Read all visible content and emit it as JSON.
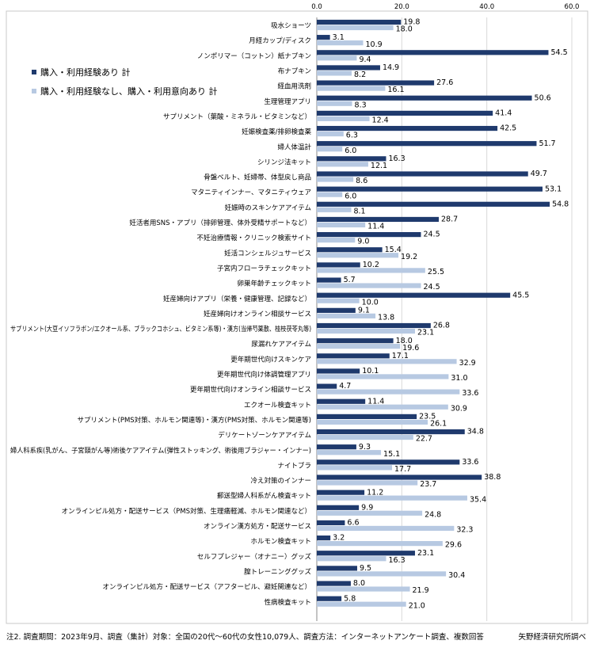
{
  "chart_data": {
    "type": "bar",
    "orientation": "horizontal",
    "xlim": [
      0,
      60
    ],
    "xticks": [
      "0.0",
      "20.0",
      "40.0",
      "60.0"
    ],
    "grid": true,
    "legend_position": "left",
    "colors": {
      "series1": "#1f3a6d",
      "series2": "#b7c9e2"
    },
    "series": [
      {
        "name": "購入・利用経験あり 計"
      },
      {
        "name": "購入・利用経験なし、購入・利用意向あり 計"
      }
    ],
    "categories": [
      {
        "label": "吸水ショーツ",
        "v1": "19.8",
        "v2": "18.0"
      },
      {
        "label": "月経カップ/ディスク",
        "v1": "3.1",
        "v2": "10.9"
      },
      {
        "label": "ノンポリマー（コットン）紙ナプキン",
        "v1": "54.5",
        "v2": "9.4"
      },
      {
        "label": "布ナプキン",
        "v1": "14.9",
        "v2": "8.2"
      },
      {
        "label": "経血用洗剤",
        "v1": "27.6",
        "v2": "16.1"
      },
      {
        "label": "生理管理アプリ",
        "v1": "50.6",
        "v2": "8.3"
      },
      {
        "label": "サプリメント（葉酸・ミネラル・ビタミンなど）",
        "v1": "41.4",
        "v2": "12.4"
      },
      {
        "label": "妊娠検査薬/排卵検査薬",
        "v1": "42.5",
        "v2": "6.3"
      },
      {
        "label": "婦人体温計",
        "v1": "51.7",
        "v2": "6.0"
      },
      {
        "label": "シリンジ法キット",
        "v1": "16.3",
        "v2": "12.1"
      },
      {
        "label": "骨盤ベルト、妊婦帯、体型戻し商品",
        "v1": "49.7",
        "v2": "8.6"
      },
      {
        "label": "マタニティインナー、マタニティウェア",
        "v1": "53.1",
        "v2": "6.0"
      },
      {
        "label": "妊娠時のスキンケアアイテム",
        "v1": "54.8",
        "v2": "8.1"
      },
      {
        "label": "妊活者用SNS・アプリ（排卵管理、体外受精サポートなど）",
        "v1": "28.7",
        "v2": "11.4"
      },
      {
        "label": "不妊治療情報・クリニック検索サイト",
        "v1": "24.5",
        "v2": "9.0"
      },
      {
        "label": "妊活コンシェルジュサービス",
        "v1": "15.4",
        "v2": "19.2"
      },
      {
        "label": "子宮内フローラチェックキット",
        "v1": "10.2",
        "v2": "25.5"
      },
      {
        "label": "卵巣年齢チェックキット",
        "v1": "5.7",
        "v2": "24.5"
      },
      {
        "label": "妊産婦向けアプリ（栄養・健康管理、記録など）",
        "v1": "45.5",
        "v2": "10.0"
      },
      {
        "label": "妊産婦向けオンライン相談サービス",
        "v1": "9.1",
        "v2": "13.8"
      },
      {
        "label": "サプリメント(大豆イソフラボン/エクオール系、ブラックコホシュ、ビタミン系等)・漢方(当帰芍薬散、桂枝茯苓丸等)",
        "v1": "26.8",
        "v2": "23.1"
      },
      {
        "label": "尿漏れケアアイテム",
        "v1": "18.0",
        "v2": "19.6"
      },
      {
        "label": "更年期世代向けスキンケア",
        "v1": "17.1",
        "v2": "32.9"
      },
      {
        "label": "更年期世代向け体調管理アプリ",
        "v1": "10.1",
        "v2": "31.0"
      },
      {
        "label": "更年期世代向けオンライン相談サービス",
        "v1": "4.7",
        "v2": "33.6"
      },
      {
        "label": "エクオール検査キット",
        "v1": "11.4",
        "v2": "30.9"
      },
      {
        "label": "サプリメント(PMS対策、ホルモン関連等)・漢方(PMS対策、ホルモン関連等)",
        "v1": "23.5",
        "v2": "26.1"
      },
      {
        "label": "デリケートゾーンケアアイテム",
        "v1": "34.8",
        "v2": "22.7"
      },
      {
        "label": "婦人科系疾(乳がん、子宮頸がん等)術後ケアアイテム(弾性ストッキング、術後用ブラジャー・インナー)",
        "v1": "9.3",
        "v2": "15.1"
      },
      {
        "label": "ナイトブラ",
        "v1": "33.6",
        "v2": "17.7"
      },
      {
        "label": "冷え対策のインナー",
        "v1": "38.8",
        "v2": "23.7"
      },
      {
        "label": "郵送型婦人科系がん検査キット",
        "v1": "11.2",
        "v2": "35.4"
      },
      {
        "label": "オンラインピル処方・配送サービス（PMS対策、生理痛軽減、ホルモン関連など）",
        "v1": "9.9",
        "v2": "24.8"
      },
      {
        "label": "オンライン漢方処方・配送サービス",
        "v1": "6.6",
        "v2": "32.3"
      },
      {
        "label": "ホルモン検査キット",
        "v1": "3.2",
        "v2": "29.6"
      },
      {
        "label": "セルフプレジャー（オナニー）グッズ",
        "v1": "23.1",
        "v2": "16.3"
      },
      {
        "label": "膣トレーニンググッズ",
        "v1": "9.5",
        "v2": "30.4"
      },
      {
        "label": "オンラインピル処方・配送サービス（アフターピル、避妊関連など）",
        "v1": "8.0",
        "v2": "21.9"
      },
      {
        "label": "性病検査キット",
        "v1": "5.8",
        "v2": "21.0"
      }
    ]
  },
  "footer": {
    "note": "注2. 調査期間：2023年9月、調査（集計）対象：全国の20代～60代の女性10,079人、調査方法：インターネットアンケート調査、複数回答",
    "source": "矢野経済研究所調べ"
  }
}
